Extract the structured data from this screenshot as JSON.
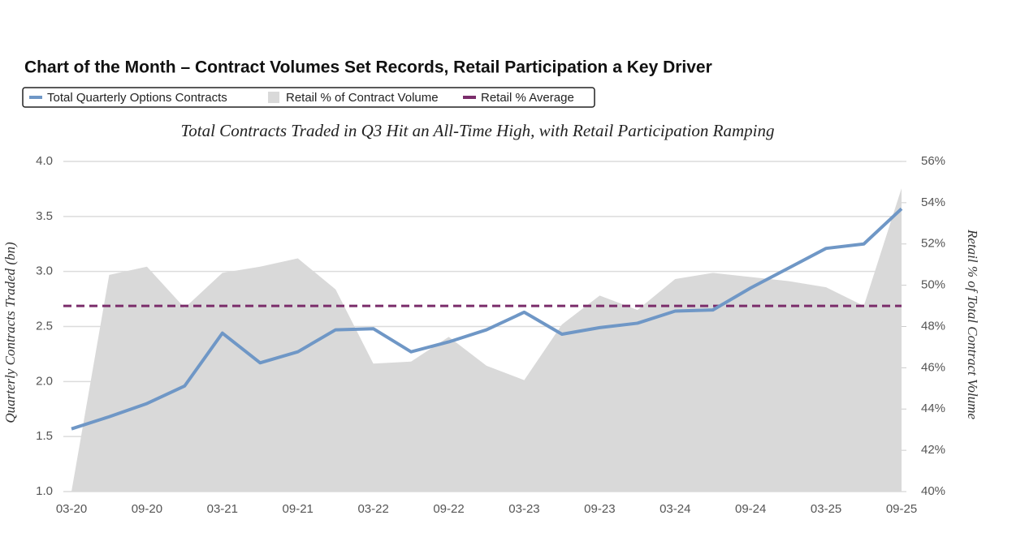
{
  "chart_data": {
    "type": "line",
    "title": "Chart of the Month – Contract Volumes Set Records, Retail Participation a Key Driver",
    "subtitle": "Total Contracts Traded in Q3 Hit an All-Time High, with Retail Participation Ramping",
    "ylabel": "Quarterly Contracts Traded (bn)",
    "y2label": "Retail % of Total Contract Volume",
    "categories": [
      "03-20",
      null,
      "09-20",
      null,
      "03-21",
      null,
      "09-21",
      null,
      "03-22",
      null,
      "09-22",
      null,
      "03-23",
      null,
      "09-23",
      null,
      "03-24",
      null,
      "09-24",
      null,
      "03-25",
      null,
      "09-25"
    ],
    "series": [
      {
        "name": "Total Quarterly Options Contracts",
        "type": "line",
        "color": "#6f97c6",
        "values": [
          1.57,
          1.68,
          1.8,
          1.96,
          2.44,
          2.17,
          2.27,
          2.47,
          2.48,
          2.27,
          2.36,
          2.47,
          2.63,
          2.43,
          2.49,
          2.53,
          2.64,
          2.65,
          2.85,
          3.03,
          3.21,
          3.25,
          3.57
        ]
      },
      {
        "name": "Retail % of Contract Volume",
        "type": "area",
        "axis": "y2",
        "color": "#d9d9d9",
        "values": [
          40,
          50.5,
          50.9,
          48.9,
          50.6,
          50.9,
          51.3,
          49.8,
          46.2,
          46.3,
          47.5,
          46.1,
          45.4,
          48.1,
          49.5,
          48.8,
          50.3,
          50.6,
          50.4,
          50.2,
          49.9,
          49,
          54.7
        ]
      }
    ],
    "reference_lines": [
      {
        "name": "Retail % Average",
        "value": 49,
        "axis": "y2",
        "color": "#7b2d6b",
        "style": "dashed"
      }
    ],
    "ylim": [
      1,
      4
    ],
    "yticks": [
      {
        "value": 1,
        "label": "1.0"
      },
      1.5,
      {
        "value": 2,
        "label": "2.0"
      },
      2.5,
      {
        "value": 3,
        "label": "3.0"
      },
      3.5,
      {
        "value": 4,
        "label": "4.0"
      }
    ],
    "y2lim": [
      40,
      56
    ],
    "y2ticks": [
      {
        "value": 40,
        "label": "40%"
      },
      {
        "value": 42,
        "label": "42%"
      },
      {
        "value": 44,
        "label": "44%"
      },
      {
        "value": 46,
        "label": "46%"
      },
      {
        "value": 48,
        "label": "48%"
      },
      {
        "value": 50,
        "label": "50%"
      },
      {
        "value": 52,
        "label": "52%"
      },
      {
        "value": 54,
        "label": "54%"
      },
      {
        "value": 56,
        "label": "56%"
      }
    ],
    "grid": true
  }
}
